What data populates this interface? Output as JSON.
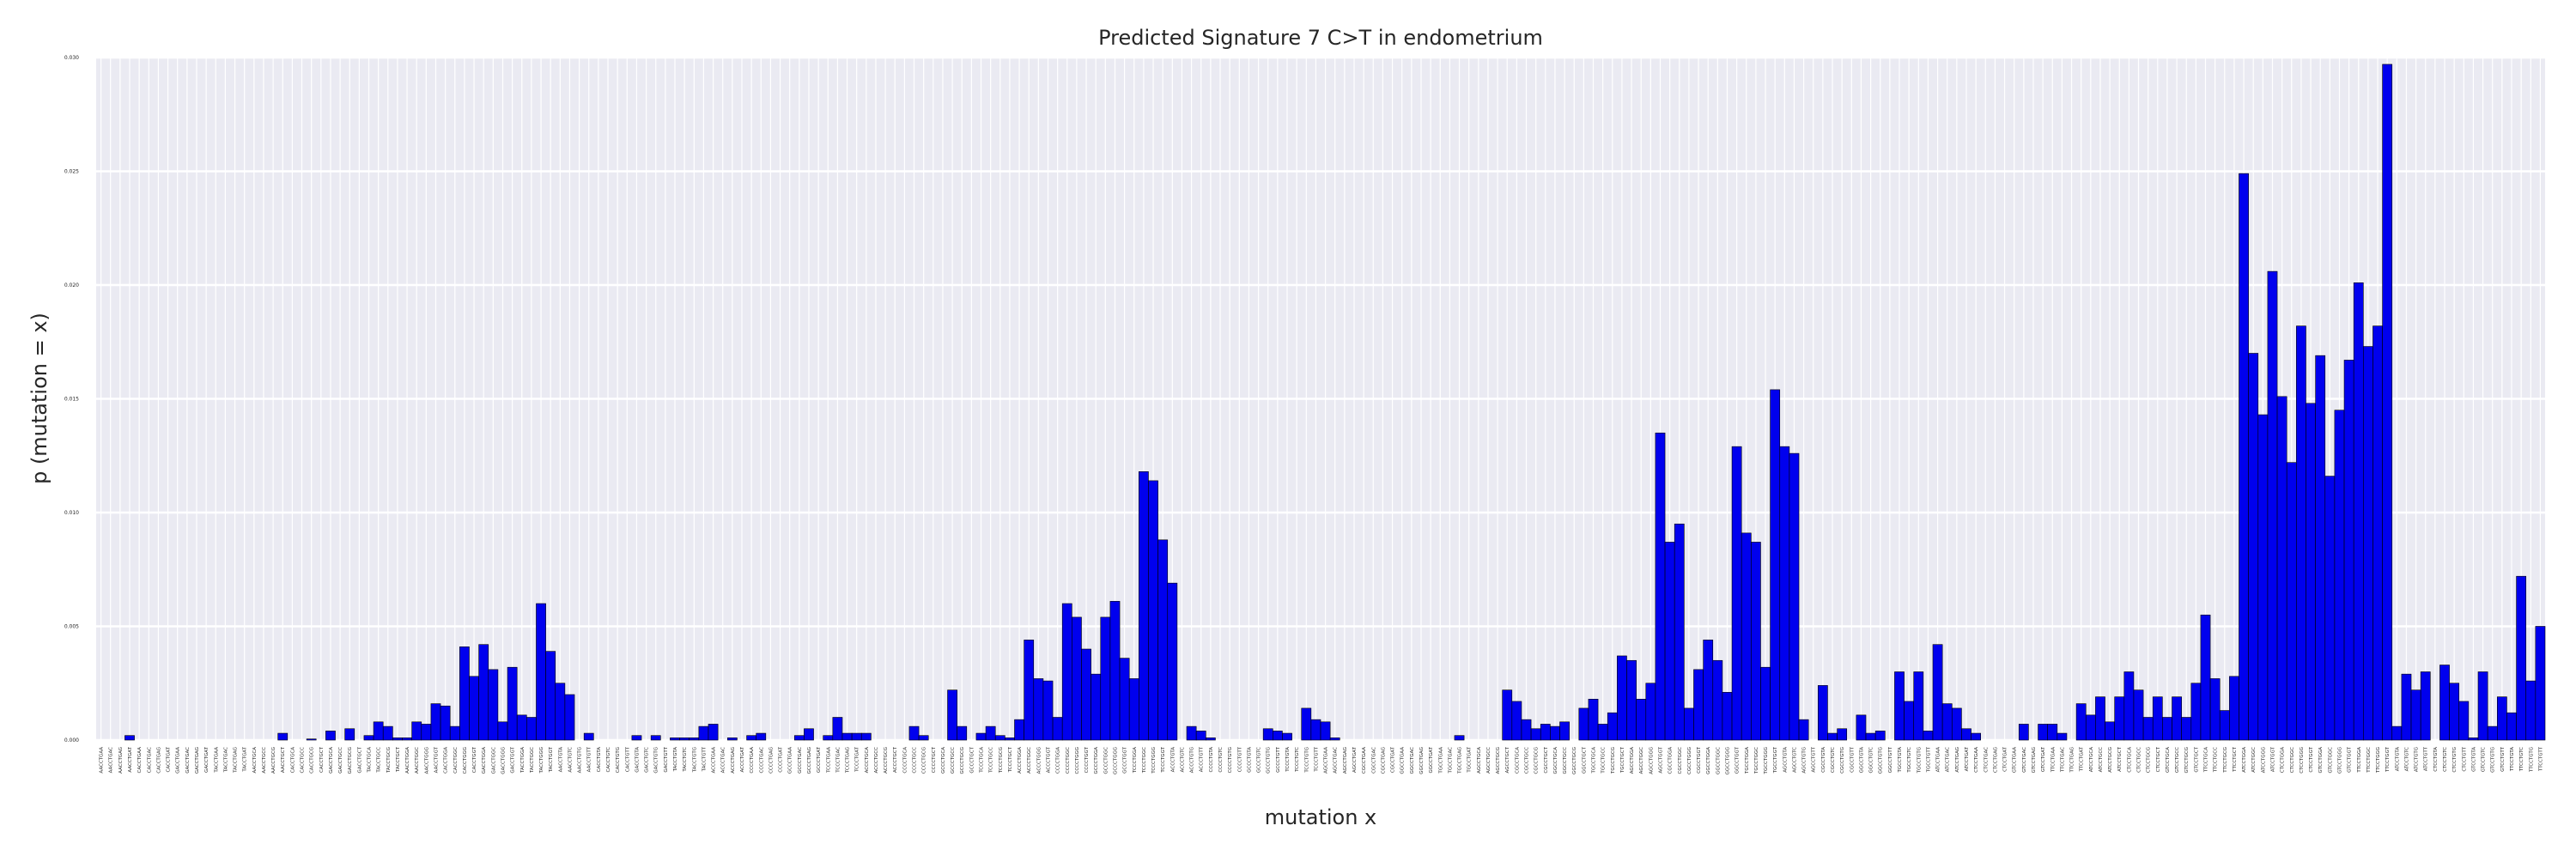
{
  "chart_data": {
    "type": "bar",
    "title": "Predicted Signature 7 C>T in endometrium",
    "xlabel": "mutation x",
    "ylabel": "p (mutation = x)",
    "ylim": [
      0,
      0.03
    ],
    "y_ticks": [
      "0.000",
      "0.005",
      "0.010",
      "0.015",
      "0.020",
      "0.025",
      "0.030"
    ],
    "grid": true,
    "bar_color": "#0000ee",
    "bar_edge_color": "#000000",
    "background_color": "#eaeaf2",
    "grid_color": "#ffffff",
    "categories": [
      "AACCTGAA",
      "AACCTGAC",
      "AACCTGAG",
      "AACCTGAT",
      "CACCTGAA",
      "CACCTGAC",
      "CACCTGAG",
      "CACCTGAT",
      "GACCTGAA",
      "GACCTGAC",
      "GACCTGAG",
      "GACCTGAT",
      "TACCTGAA",
      "TACCTGAC",
      "TACCTGAG",
      "TACCTGAT",
      "AACCTGCA",
      "AACCTGCC",
      "AACCTGCG",
      "AACCTGCT",
      "CACCTGCA",
      "CACCTGCC",
      "CACCTGCG",
      "CACCTGCT",
      "GACCTGCA",
      "GACCTGCC",
      "GACCTGCG",
      "GACCTGCT",
      "TACCTGCA",
      "TACCTGCC",
      "TACCTGCG",
      "TACCTGCT",
      "AACCTGGA",
      "AACCTGGC",
      "AACCTGGG",
      "AACCTGGT",
      "CACCTGGA",
      "CACCTGGC",
      "CACCTGGG",
      "CACCTGGT",
      "GACCTGGA",
      "GACCTGGC",
      "GACCTGGG",
      "GACCTGGT",
      "TACCTGGA",
      "TACCTGGC",
      "TACCTGGG",
      "TACCTGGT",
      "AACCTGTA",
      "AACCTGTC",
      "AACCTGTG",
      "AACCTGTT",
      "CACCTGTA",
      "CACCTGTC",
      "CACCTGTG",
      "CACCTGTT",
      "GACCTGTA",
      "GACCTGTC",
      "GACCTGTG",
      "GACCTGTT",
      "TACCTGTA",
      "TACCTGTC",
      "TACCTGTG",
      "TACCTGTT",
      "ACCCTGAA",
      "ACCCTGAC",
      "ACCCTGAG",
      "ACCCTGAT",
      "CCCCTGAA",
      "CCCCTGAC",
      "CCCCTGAG",
      "CCCCTGAT",
      "GCCCTGAA",
      "GCCCTGAC",
      "GCCCTGAG",
      "GCCCTGAT",
      "TCCCTGAA",
      "TCCCTGAC",
      "TCCCTGAG",
      "TCCCTGAT",
      "ACCCTGCA",
      "ACCCTGCC",
      "ACCCTGCG",
      "ACCCTGCT",
      "CCCCTGCA",
      "CCCCTGCC",
      "CCCCTGCG",
      "CCCCTGCT",
      "GCCCTGCA",
      "GCCCTGCC",
      "GCCCTGCG",
      "GCCCTGCT",
      "TCCCTGCA",
      "TCCCTGCC",
      "TCCCTGCG",
      "TCCCTGCT",
      "ACCCTGGA",
      "ACCCTGGC",
      "ACCCTGGG",
      "ACCCTGGT",
      "CCCCTGGA",
      "CCCCTGGC",
      "CCCCTGGG",
      "CCCCTGGT",
      "GCCCTGGA",
      "GCCCTGGC",
      "GCCCTGGG",
      "GCCCTGGT",
      "TCCCTGGA",
      "TCCCTGGC",
      "TCCCTGGG",
      "TCCCTGGT",
      "ACCCTGTA",
      "ACCCTGTC",
      "ACCCTGTG",
      "ACCCTGTT",
      "CCCCTGTA",
      "CCCCTGTC",
      "CCCCTGTG",
      "CCCCTGTT",
      "GCCCTGTA",
      "GCCCTGTC",
      "GCCCTGTG",
      "GCCCTGTT",
      "TCCCTGTA",
      "TCCCTGTC",
      "TCCCTGTG",
      "TCCCTGTT",
      "AGCCTGAA",
      "AGCCTGAC",
      "AGCCTGAG",
      "AGCCTGAT",
      "CGCCTGAA",
      "CGCCTGAC",
      "CGCCTGAG",
      "CGCCTGAT",
      "GGCCTGAA",
      "GGCCTGAC",
      "GGCCTGAG",
      "GGCCTGAT",
      "TGCCTGAA",
      "TGCCTGAC",
      "TGCCTGAG",
      "TGCCTGAT",
      "AGCCTGCA",
      "AGCCTGCC",
      "AGCCTGCG",
      "AGCCTGCT",
      "CGCCTGCA",
      "CGCCTGCC",
      "CGCCTGCG",
      "CGCCTGCT",
      "GGCCTGCA",
      "GGCCTGCC",
      "GGCCTGCG",
      "GGCCTGCT",
      "TGCCTGCA",
      "TGCCTGCC",
      "TGCCTGCG",
      "TGCCTGCT",
      "AGCCTGGA",
      "AGCCTGGC",
      "AGCCTGGG",
      "AGCCTGGT",
      "CGCCTGGA",
      "CGCCTGGC",
      "CGCCTGGG",
      "CGCCTGGT",
      "GGCCTGGA",
      "GGCCTGGC",
      "GGCCTGGG",
      "GGCCTGGT",
      "TGCCTGGA",
      "TGCCTGGC",
      "TGCCTGGG",
      "TGCCTGGT",
      "AGCCTGTA",
      "AGCCTGTC",
      "AGCCTGTG",
      "AGCCTGTT",
      "CGCCTGTA",
      "CGCCTGTC",
      "CGCCTGTG",
      "CGCCTGTT",
      "GGCCTGTA",
      "GGCCTGTC",
      "GGCCTGTG",
      "GGCCTGTT",
      "TGCCTGTA",
      "TGCCTGTC",
      "TGCCTGTG",
      "TGCCTGTT",
      "ATCCTGAA",
      "ATCCTGAC",
      "ATCCTGAG",
      "ATCCTGAT",
      "CTCCTGAA",
      "CTCCTGAC",
      "CTCCTGAG",
      "CTCCTGAT",
      "GTCCTGAA",
      "GTCCTGAC",
      "GTCCTGAG",
      "GTCCTGAT",
      "TTCCTGAA",
      "TTCCTGAC",
      "TTCCTGAG",
      "TTCCTGAT",
      "ATCCTGCA",
      "ATCCTGCC",
      "ATCCTGCG",
      "ATCCTGCT",
      "CTCCTGCA",
      "CTCCTGCC",
      "CTCCTGCG",
      "CTCCTGCT",
      "GTCCTGCA",
      "GTCCTGCC",
      "GTCCTGCG",
      "GTCCTGCT",
      "TTCCTGCA",
      "TTCCTGCC",
      "TTCCTGCG",
      "TTCCTGCT",
      "ATCCTGGA",
      "ATCCTGGC",
      "ATCCTGGG",
      "ATCCTGGT",
      "CTCCTGGA",
      "CTCCTGGC",
      "CTCCTGGG",
      "CTCCTGGT",
      "GTCCTGGA",
      "GTCCTGGC",
      "GTCCTGGG",
      "GTCCTGGT",
      "TTCCTGGA",
      "TTCCTGGC",
      "TTCCTGGG",
      "TTCCTGGT",
      "ATCCTGTA",
      "ATCCTGTC",
      "ATCCTGTG",
      "ATCCTGTT",
      "CTCCTGTA",
      "CTCCTGTC",
      "CTCCTGTG",
      "CTCCTGTT",
      "GTCCTGTA",
      "GTCCTGTC",
      "GTCCTGTG",
      "GTCCTGTT",
      "TTCCTGTA",
      "TTCCTGTC",
      "TTCCTGTG",
      "TTCCTGTT"
    ],
    "values": [
      0,
      0,
      0,
      0.0002,
      0,
      0,
      0,
      0,
      0,
      0,
      0,
      0,
      0,
      0,
      0,
      0,
      0,
      0,
      0,
      0.0003,
      0,
      0,
      5e-05,
      0,
      0.0004,
      0,
      0.0005,
      0,
      0.0002,
      0.0008,
      0.0006,
      0.0001,
      0.0001,
      0.0008,
      0.0007,
      0.0016,
      0.0015,
      0.0006,
      0.0041,
      0.0028,
      0.0042,
      0.0031,
      0.0008,
      0.0032,
      0.0011,
      0.001,
      0.006,
      0.0039,
      0.0025,
      0.002,
      0,
      0.0003,
      0,
      0,
      0,
      0,
      0.0002,
      0,
      0.0002,
      0,
      0.0001,
      0.0001,
      0.0001,
      0.0006,
      0.0007,
      0,
      0.0001,
      0,
      0.0002,
      0.0003,
      0,
      0,
      0,
      0.0002,
      0.0005,
      0,
      0.0002,
      0.001,
      0.0003,
      0.0003,
      0.0003,
      0,
      0,
      0,
      0,
      0.0006,
      0.0002,
      0,
      0,
      0.0022,
      0.0006,
      0,
      0.0003,
      0.0006,
      0.0002,
      0.0001,
      0.0009,
      0.0044,
      0.0027,
      0.0026,
      0.001,
      0.006,
      0.0054,
      0.004,
      0.0029,
      0.0054,
      0.0061,
      0.0036,
      0.0027,
      0.0118,
      0.0114,
      0.0088,
      0.0069,
      0,
      0.0006,
      0.0004,
      0.0001,
      0,
      0,
      0,
      0,
      0,
      0.0005,
      0.0004,
      0.0003,
      0,
      0.0014,
      0.0009,
      0.0008,
      0.0001,
      0,
      0,
      0,
      0,
      0,
      0,
      0,
      0,
      0,
      0,
      0,
      0,
      0.0002,
      0,
      0,
      0,
      0,
      0.0022,
      0.0017,
      0.0009,
      0.0005,
      0.0007,
      0.0006,
      0.0008,
      0,
      0.0014,
      0.0018,
      0.0007,
      0.0012,
      0.0037,
      0.0035,
      0.0018,
      0.0025,
      0.0135,
      0.0087,
      0.0095,
      0.0014,
      0.0031,
      0.0044,
      0.0035,
      0.0021,
      0.0129,
      0.0091,
      0.0087,
      0.0032,
      0.0154,
      0.0129,
      0.0126,
      0.0009,
      0,
      0.0024,
      0.0003,
      0.0005,
      0,
      0.0011,
      0.0003,
      0.0004,
      0,
      0.003,
      0.0017,
      0.003,
      0.0004,
      0.0042,
      0.0016,
      0.0014,
      0.0005,
      0.0003,
      0,
      0,
      0,
      0,
      0.0007,
      0,
      0.0007,
      0.0007,
      0.0003,
      0,
      0.0016,
      0.0011,
      0.0019,
      0.0008,
      0.0019,
      0.003,
      0.0022,
      0.001,
      0.0019,
      0.001,
      0.0019,
      0.001,
      0.0025,
      0.0055,
      0.0027,
      0.0013,
      0.0028,
      0.0249,
      0.017,
      0.0143,
      0.0206,
      0.0151,
      0.0122,
      0.0182,
      0.0148,
      0.0169,
      0.0116,
      0.0145,
      0.0167,
      0.0201,
      0.0173,
      0.0182,
      0.0297,
      0.0006,
      0.0029,
      0.0022,
      0.003,
      0,
      0.0033,
      0.0025,
      0.0017,
      0.0001,
      0.003,
      0.0006,
      0.0019,
      0.0012,
      0.0072,
      0.0026,
      0.005
    ]
  }
}
